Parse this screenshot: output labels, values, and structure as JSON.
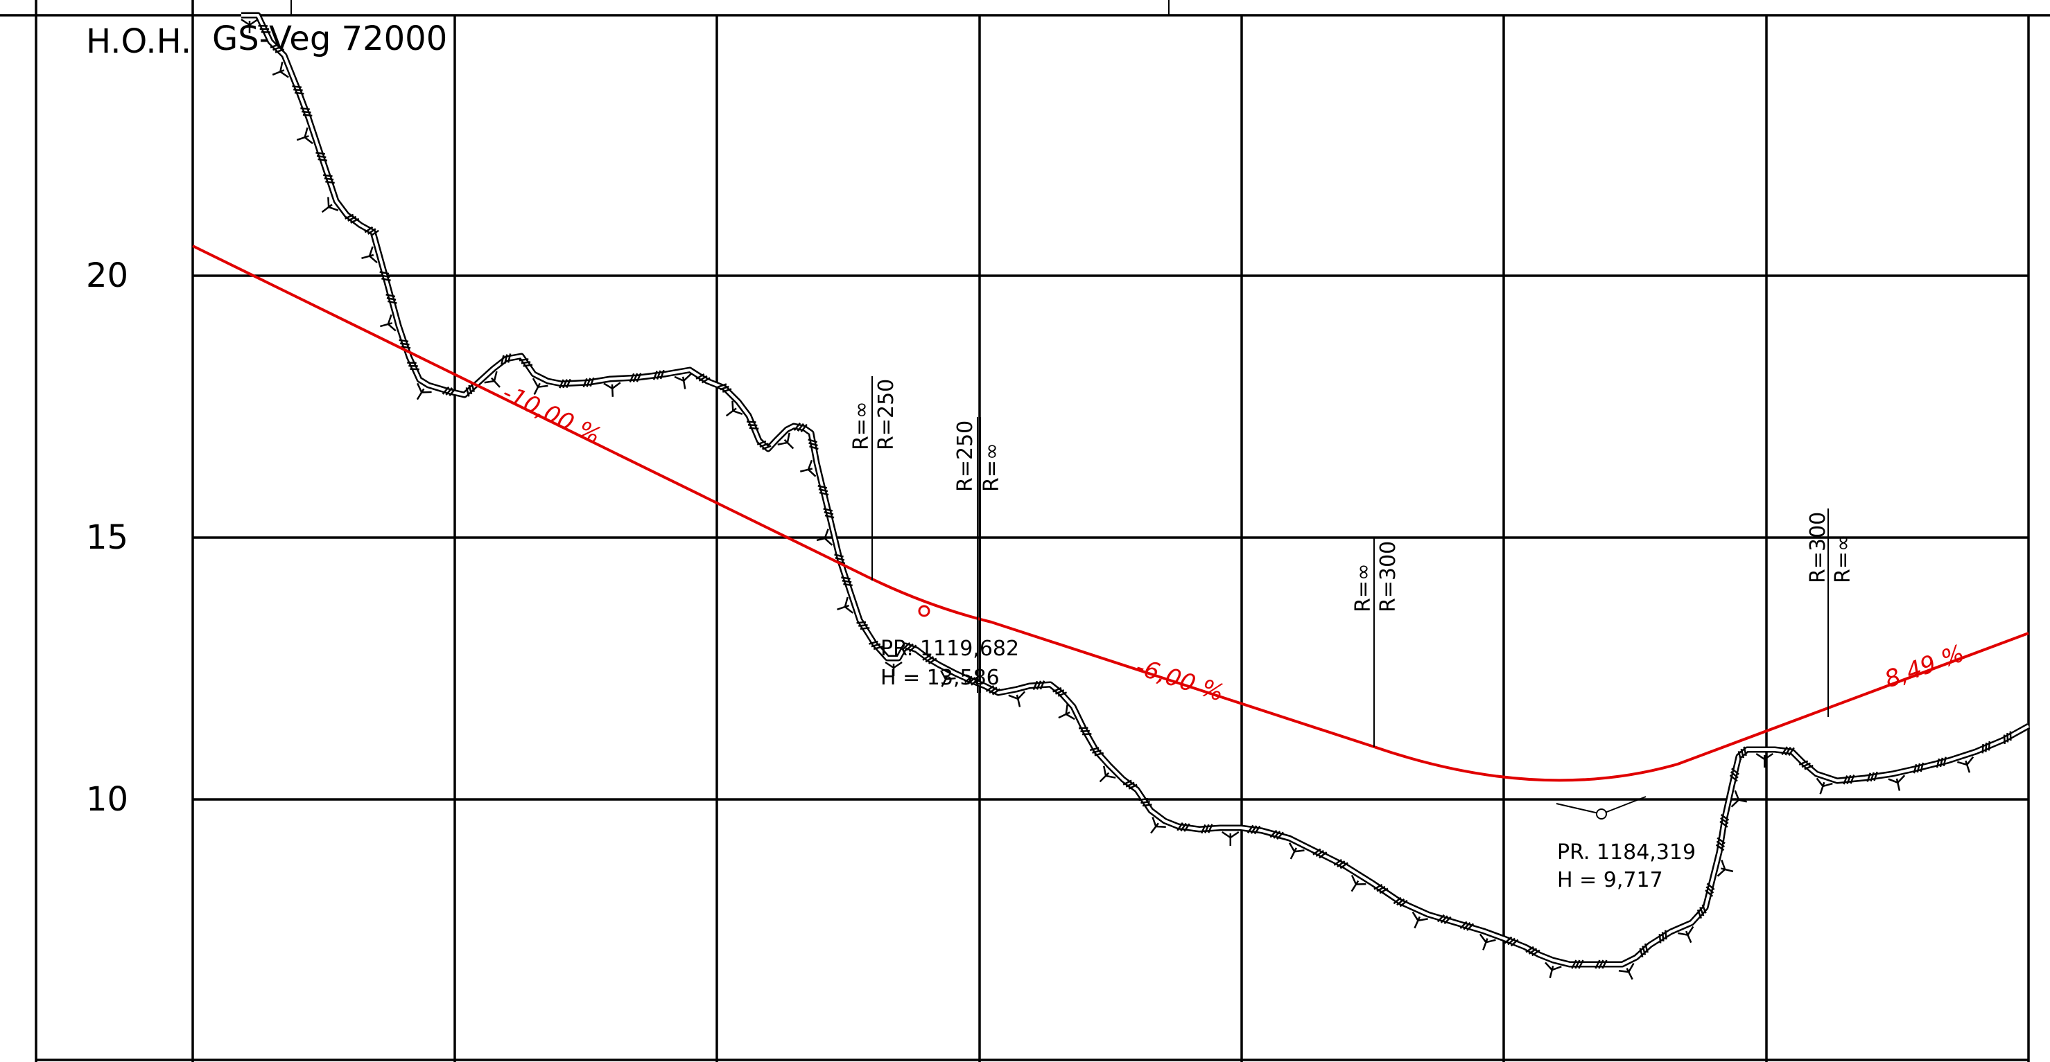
{
  "header": {
    "hoh_label": "H.O.H.",
    "road_name": "GS-Veg 72000"
  },
  "elevation_axis": {
    "ticks": [
      "20",
      "15",
      "10"
    ]
  },
  "grades": [
    {
      "text": "-10,00 %"
    },
    {
      "text": "-6,00 %"
    },
    {
      "text": "8,49 %"
    }
  ],
  "curve_radii": [
    {
      "lower": "R=∞",
      "upper": "R=250"
    },
    {
      "lower": "R=250",
      "upper": "R=∞"
    },
    {
      "lower": "R=∞",
      "upper": "R=300"
    },
    {
      "lower": "R=300",
      "upper": "R=∞"
    }
  ],
  "points": [
    {
      "profile": "PR. 1119,682",
      "height": "H = 13,586"
    },
    {
      "profile": "PR. 1184,319",
      "height": "H = 9,717"
    }
  ],
  "colors": {
    "design_line": "#e00000",
    "grid": "#000000",
    "terrain": "#000000"
  }
}
